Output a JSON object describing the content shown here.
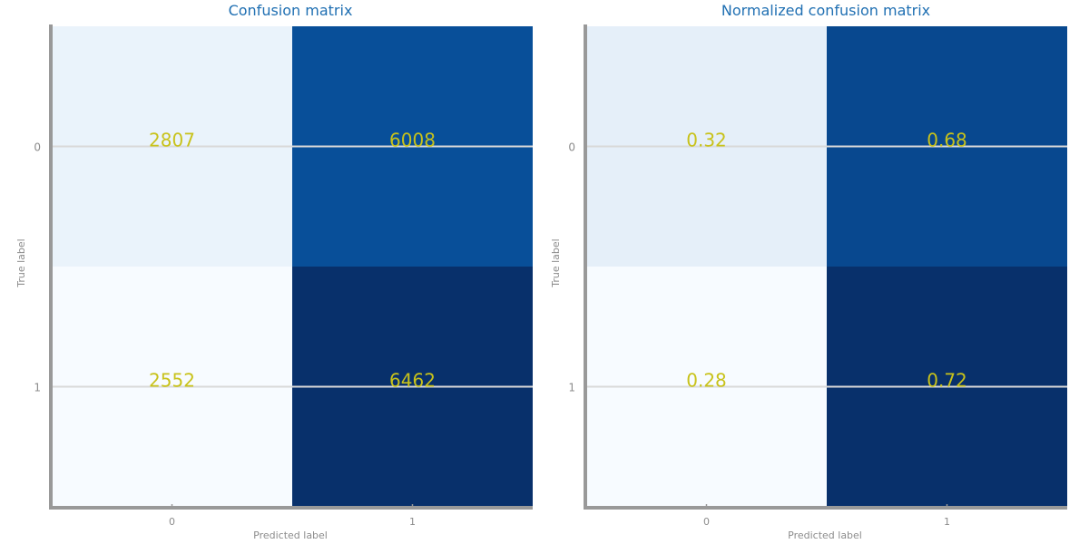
{
  "chart_data": [
    {
      "type": "heatmap",
      "title": "Confusion matrix",
      "xlabel": "Predicted label",
      "ylabel": "True label",
      "x_categories": [
        "0",
        "1"
      ],
      "y_categories": [
        "0",
        "1"
      ],
      "values": [
        [
          2807,
          6008
        ],
        [
          2552,
          6462
        ]
      ],
      "value_labels": [
        [
          "2807",
          "6008"
        ],
        [
          "2552",
          "6462"
        ]
      ],
      "colormap": "Blues",
      "grid": true
    },
    {
      "type": "heatmap",
      "title": "Normalized confusion matrix",
      "xlabel": "Predicted label",
      "ylabel": "True label",
      "x_categories": [
        "0",
        "1"
      ],
      "y_categories": [
        "0",
        "1"
      ],
      "values": [
        [
          0.32,
          0.68
        ],
        [
          0.28,
          0.72
        ]
      ],
      "value_labels": [
        [
          "0.32",
          "0.68"
        ],
        [
          "0.28",
          "0.72"
        ]
      ],
      "colormap": "Blues",
      "grid": true
    }
  ],
  "colors": {
    "title": "#1f6fb2",
    "cell_text": "#c8c21a",
    "axis": "#999999",
    "tick_text": "#8c8c8c",
    "gridline": "#d9d9d9"
  }
}
